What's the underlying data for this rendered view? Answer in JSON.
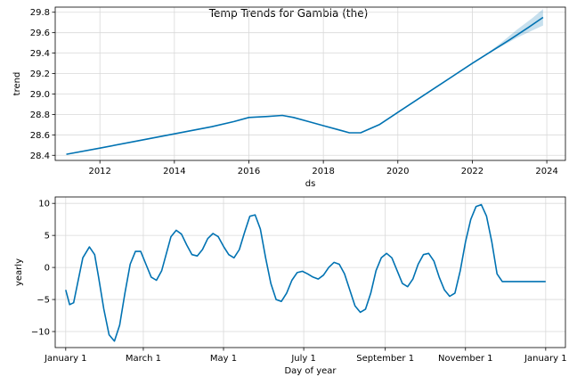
{
  "figure": {
    "title": "Temp Trends for Gambia (the)"
  },
  "colors": {
    "line": "#0072B2",
    "band": "#0072B2",
    "grid": "#d9d9d9",
    "axis": "#000000"
  },
  "chart_data": [
    {
      "type": "line",
      "name": "trend",
      "xlabel": "ds",
      "ylabel": "trend",
      "xlim": [
        2010.8,
        2024.5
      ],
      "ylim": [
        28.35,
        29.85
      ],
      "xticks": [
        2012,
        2014,
        2016,
        2018,
        2020,
        2022,
        2024
      ],
      "xtick_labels": [
        "2012",
        "2014",
        "2016",
        "2018",
        "2020",
        "2022",
        "2024"
      ],
      "yticks": [
        28.4,
        28.6,
        28.8,
        29.0,
        29.2,
        29.4,
        29.6,
        29.8
      ],
      "ytick_labels": [
        "28.4",
        "28.6",
        "28.8",
        "29.0",
        "29.2",
        "29.4",
        "29.6",
        "29.8"
      ],
      "grid": true,
      "x": [
        2011.1,
        2012.0,
        2013.0,
        2014.0,
        2015.0,
        2015.6,
        2016.0,
        2016.5,
        2016.9,
        2017.2,
        2017.6,
        2018.0,
        2018.5,
        2018.7,
        2019.0,
        2019.5,
        2020.0,
        2021.0,
        2022.0,
        2023.0,
        2023.5,
        2023.9
      ],
      "y": [
        28.41,
        28.47,
        28.54,
        28.61,
        28.68,
        28.73,
        28.77,
        28.78,
        28.79,
        28.77,
        28.73,
        28.69,
        28.64,
        28.62,
        28.62,
        28.7,
        28.82,
        29.06,
        29.3,
        29.53,
        29.65,
        29.75
      ],
      "uncertainty_band": {
        "x": [
          2022.3,
          2022.8,
          2023.2,
          2023.6,
          2023.9
        ],
        "lower": [
          29.37,
          29.47,
          29.55,
          29.62,
          29.67
        ],
        "upper": [
          29.37,
          29.51,
          29.63,
          29.74,
          29.83
        ]
      }
    },
    {
      "type": "line",
      "name": "yearly",
      "xlabel": "Day of year",
      "ylabel": "yearly",
      "xlim": [
        -8,
        380
      ],
      "ylim": [
        -12.5,
        11
      ],
      "xticks": [
        0,
        59,
        120,
        181,
        243,
        304,
        365
      ],
      "xtick_labels": [
        "January 1",
        "March 1",
        "May 1",
        "July 1",
        "September 1",
        "November 1",
        "January 1"
      ],
      "yticks": [
        -10,
        -5,
        0,
        5,
        10
      ],
      "ytick_labels": [
        "−10",
        "−5",
        "0",
        "5",
        "10"
      ],
      "grid": true,
      "x": [
        0,
        3,
        6,
        9,
        13,
        18,
        22,
        25,
        29,
        33,
        37,
        41,
        45,
        49,
        53,
        57,
        61,
        65,
        69,
        73,
        77,
        80,
        84,
        88,
        92,
        96,
        100,
        104,
        108,
        112,
        116,
        120,
        124,
        128,
        132,
        136,
        140,
        144,
        148,
        152,
        156,
        160,
        164,
        168,
        172,
        176,
        180,
        184,
        188,
        192,
        196,
        200,
        204,
        208,
        212,
        216,
        220,
        224,
        228,
        232,
        236,
        240,
        244,
        248,
        252,
        256,
        260,
        264,
        268,
        272,
        276,
        280,
        284,
        288,
        292,
        296,
        300,
        304,
        308,
        312,
        316,
        320,
        324,
        328,
        332,
        336,
        340,
        344,
        348,
        352,
        356,
        360,
        365
      ],
      "y": [
        -3.5,
        -5.8,
        -5.5,
        -2.5,
        1.5,
        3.2,
        2.0,
        -1.5,
        -6.5,
        -10.5,
        -11.5,
        -9.0,
        -4.0,
        0.5,
        2.5,
        2.5,
        0.5,
        -1.5,
        -2.0,
        -0.5,
        2.5,
        4.8,
        5.8,
        5.2,
        3.5,
        2.0,
        1.8,
        2.8,
        4.5,
        5.3,
        4.8,
        3.3,
        2.0,
        1.5,
        2.8,
        5.5,
        8.0,
        8.2,
        6.0,
        1.5,
        -2.5,
        -5.0,
        -5.3,
        -4.0,
        -2.0,
        -0.8,
        -0.6,
        -1.0,
        -1.5,
        -1.8,
        -1.2,
        0.0,
        0.8,
        0.5,
        -1.0,
        -3.5,
        -6.0,
        -7.0,
        -6.5,
        -4.0,
        -0.5,
        1.5,
        2.2,
        1.5,
        -0.5,
        -2.5,
        -3.0,
        -1.8,
        0.5,
        2.0,
        2.2,
        1.0,
        -1.5,
        -3.5,
        -4.5,
        -4.0,
        -0.5,
        4.0,
        7.5,
        9.5,
        9.8,
        8.0,
        4.0,
        -1.0,
        -2.2,
        -2.2,
        -2.2,
        -2.2,
        -2.2,
        -2.2,
        -2.2,
        -2.2,
        -2.2
      ]
    }
  ]
}
